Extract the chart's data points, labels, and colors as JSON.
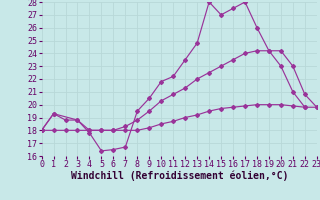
{
  "xlabel": "Windchill (Refroidissement éolien,°C)",
  "xlim": [
    0,
    23
  ],
  "ylim": [
    16,
    28
  ],
  "xticks": [
    0,
    1,
    2,
    3,
    4,
    5,
    6,
    7,
    8,
    9,
    10,
    11,
    12,
    13,
    14,
    15,
    16,
    17,
    18,
    19,
    20,
    21,
    22,
    23
  ],
  "yticks": [
    16,
    17,
    18,
    19,
    20,
    21,
    22,
    23,
    24,
    25,
    26,
    27,
    28
  ],
  "bg_color": "#c8e8e8",
  "grid_color": "#aad4d4",
  "line_color": "#993399",
  "line1_x": [
    0,
    1,
    3,
    4,
    5,
    6,
    7,
    8,
    9,
    10,
    11,
    12,
    13,
    14,
    15,
    16,
    17,
    18,
    19,
    20,
    21,
    22
  ],
  "line1_y": [
    18,
    19.3,
    18.8,
    17.8,
    16.4,
    16.5,
    16.7,
    19.5,
    20.5,
    21.8,
    22.2,
    23.5,
    24.8,
    28.0,
    27.0,
    27.5,
    28.0,
    26.0,
    24.2,
    23.0,
    21.0,
    19.8
  ],
  "line2_x": [
    0,
    1,
    2,
    3,
    4,
    5,
    6,
    7,
    8,
    9,
    10,
    11,
    12,
    13,
    14,
    15,
    16,
    17,
    18,
    19,
    20,
    21,
    22,
    23
  ],
  "line2_y": [
    18,
    19.3,
    18.8,
    18.8,
    18.0,
    18.0,
    18.0,
    18.3,
    18.8,
    19.5,
    20.3,
    20.8,
    21.3,
    22.0,
    22.5,
    23.0,
    23.5,
    24.0,
    24.2,
    24.2,
    24.2,
    23.0,
    20.8,
    19.8
  ],
  "line3_x": [
    0,
    1,
    2,
    3,
    4,
    5,
    6,
    7,
    8,
    9,
    10,
    11,
    12,
    13,
    14,
    15,
    16,
    17,
    18,
    19,
    20,
    21,
    22,
    23
  ],
  "line3_y": [
    18,
    18,
    18,
    18,
    18,
    18,
    18,
    18,
    18,
    18.2,
    18.5,
    18.7,
    19.0,
    19.2,
    19.5,
    19.7,
    19.8,
    19.9,
    20.0,
    20.0,
    20.0,
    19.9,
    19.8,
    19.8
  ],
  "font_size_tick": 6.0,
  "font_size_label": 7.0
}
